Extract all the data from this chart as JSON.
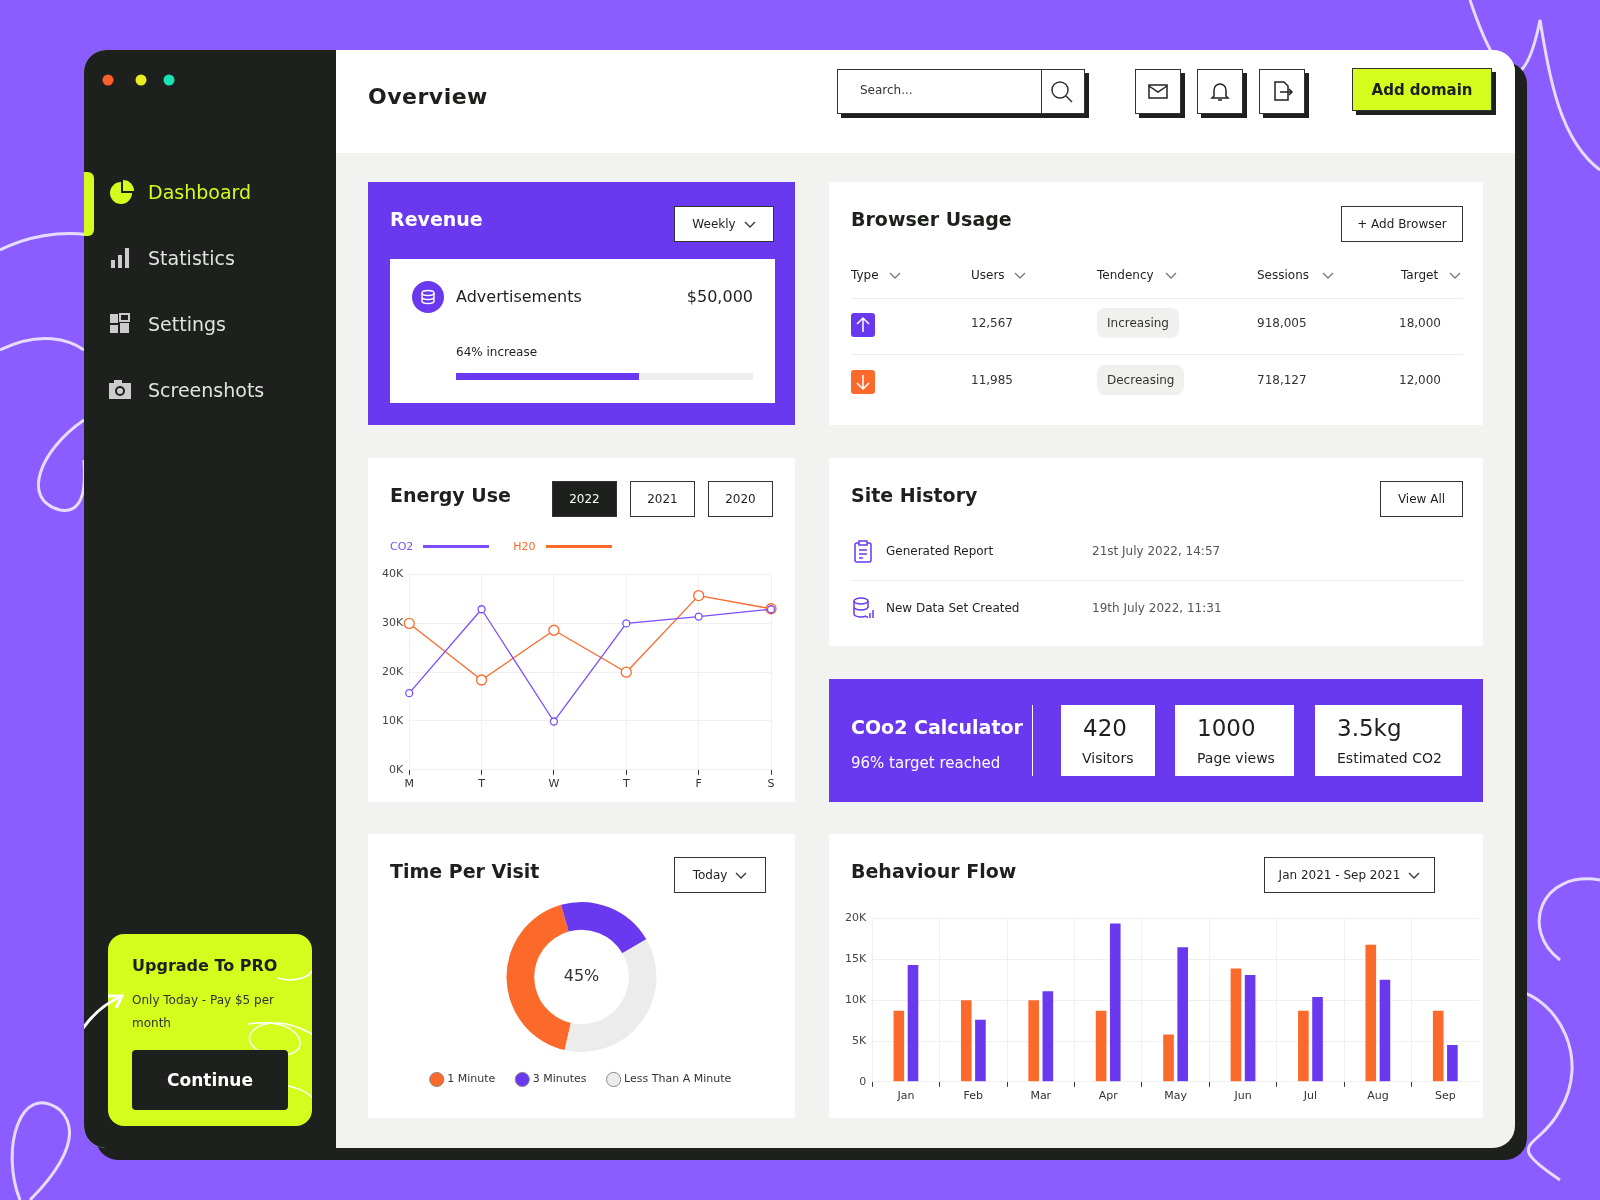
{
  "chart_data": [
    {
      "type": "other",
      "annotations": [
        "Dashboard",
        "Statistics",
        "Settings",
        "Screenshots",
        "Upgrade To PRO",
        "Only Today - Pay $5 per month",
        "Continue"
      ]
    },
    {
      "type": "other",
      "title": "Overview",
      "annotations": [
        "Search...",
        "Add domain"
      ]
    },
    {
      "type": "other",
      "title": "Revenue",
      "annotations": [
        "Weekly",
        "Advertisements",
        "$50,000",
        "64% increase"
      ]
    },
    {
      "type": "line",
      "title": "Energy Use",
      "annotations": [
        "2022",
        "2021",
        "2020"
      ],
      "categories": [
        "M",
        "T",
        "W",
        "T",
        "F",
        "S"
      ],
      "series": [
        {
          "name": "CO2",
          "color": "#7b4dff",
          "values": [
            15700,
            32900,
            9900,
            30000,
            31400,
            32900
          ]
        },
        {
          "name": "H20",
          "color": "#fb6a2a",
          "values": [
            30000,
            18400,
            28600,
            20000,
            35700,
            33000
          ]
        }
      ],
      "ylim": [
        0,
        40000
      ],
      "yticks": [
        {
          "value": 0,
          "label": "0K"
        },
        {
          "value": 10000,
          "label": "10K"
        },
        {
          "value": 20000,
          "label": "20K"
        },
        {
          "value": 30000,
          "label": "30K"
        },
        {
          "value": 40000,
          "label": "40K"
        }
      ],
      "grid": true,
      "legend": "top left",
      "marker": "circle",
      "line_style": "solid"
    },
    {
      "type": "donut",
      "title": "Time Per Visit",
      "annotations": [
        "45%",
        "Today"
      ],
      "categories": [
        "1 Minute",
        "3 Minutes",
        "Less Than A Minute"
      ],
      "values": [
        42,
        21,
        37
      ],
      "colors": [
        "#fb6a2a",
        "#6a38ee",
        "#ececec"
      ],
      "legend": "bottom"
    },
    {
      "type": "other",
      "title": "Browser Usage",
      "annotations": [
        "+ Add Browser",
        "Type",
        "Users",
        "Tendency",
        "Sessions",
        "Target",
        "12,567",
        "Increasing",
        "918,005",
        "18,000",
        "11,985",
        "Decreasing",
        "718,127",
        "12,000"
      ]
    },
    {
      "type": "other",
      "title": "Site History",
      "annotations": [
        "View All",
        "Generated Report",
        "21st July 2022, 14:57",
        "New Data Set Created",
        "19th July 2022, 11:31"
      ]
    },
    {
      "type": "other",
      "title": "COo2 Calculator",
      "annotations": [
        "96% target reached",
        "420",
        "Visitors",
        "1000",
        "Page views",
        "3.5kg",
        "Estimated CO2"
      ]
    },
    {
      "type": "bar",
      "title": "Behaviour Flow",
      "annotations": [
        "Jan 2021 - Sep 2021"
      ],
      "categories": [
        "Jan",
        "Feb",
        "Mar",
        "Apr",
        "May",
        "Jun",
        "Jul",
        "Aug",
        "Sep"
      ],
      "series": [
        {
          "color": "#fb6a2a",
          "values": [
            8700,
            10000,
            10000,
            8700,
            5800,
            13900,
            8700,
            16800,
            8700
          ]
        },
        {
          "color": "#6a38ee",
          "values": [
            14300,
            7600,
            11100,
            19400,
            16500,
            13100,
            10400,
            12500,
            4500
          ]
        }
      ],
      "ylim": [
        0,
        20000
      ],
      "yticks": [
        0,
        {
          "value": 5000,
          "label": "5K"
        },
        {
          "value": 10000,
          "label": "10K"
        },
        {
          "value": 15000,
          "label": "15K"
        },
        {
          "value": 20000,
          "label": "20K"
        }
      ],
      "grid": true
    }
  ]
}
